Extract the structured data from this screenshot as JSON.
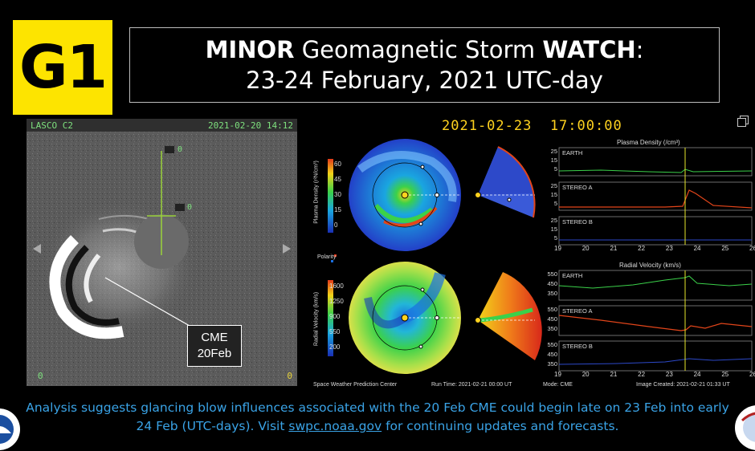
{
  "badge": {
    "text": "G1",
    "color": "#fde400"
  },
  "title": {
    "word1": "MINOR",
    "middle": " Geomagnetic Storm ",
    "word2": "WATCH",
    "colon": ":",
    "line2": "23-24 February, 2021 UTC-day"
  },
  "lasco": {
    "instrument": "LASCO C2",
    "timestamp": "2021-02-20 14:12",
    "corner_left": "0",
    "corner_right": "0",
    "marker1": "0",
    "marker2": "0",
    "cme_line1": "CME",
    "cme_line2": "20Feb"
  },
  "enlil": {
    "timestamp": "2021-02-23  17:00:00",
    "density_label": "Plasma Density (r²N/cm³)",
    "density_ticks": [
      "60",
      "45",
      "30",
      "15",
      "0"
    ],
    "polarity": "Polarity",
    "velocity_label": "Radial Velocity (km/s)",
    "velocity_ticks": [
      "1600",
      "1250",
      "900",
      "550",
      "200"
    ],
    "density_panel_title": "Plasma Density (/cm³)",
    "velocity_panel_title": "Radial Velocity (km/s)",
    "row_earth": "EARTH",
    "row_stereo_a": "STEREO A",
    "row_stereo_b": "STEREO B",
    "density_yticks": [
      "25",
      "15",
      "5"
    ],
    "velocity_yticks": [
      "550",
      "450",
      "350"
    ],
    "x_ticks": [
      "19",
      "20",
      "21",
      "22",
      "23",
      "24",
      "25",
      "26"
    ],
    "footer_center": "Space Weather Prediction Center",
    "footer_run": "Run Time: 2021-02-21 00:00 UT",
    "footer_mode": "Mode: CME",
    "footer_created": "Image Created: 2021-02-21 01:33 UT"
  },
  "footer": {
    "text_before": "Analysis suggests glancing blow influences associated with the 20 Feb CME could begin late on 23 Feb into early 24 Feb (UTC-days). Visit ",
    "link_text": "swpc.noaa.gov",
    "text_after": " for continuing updates and forecasts."
  },
  "colors": {
    "link": "#3aa3e6",
    "timestamp": "#ffd21f",
    "lasco_header": "#7ee07e"
  }
}
